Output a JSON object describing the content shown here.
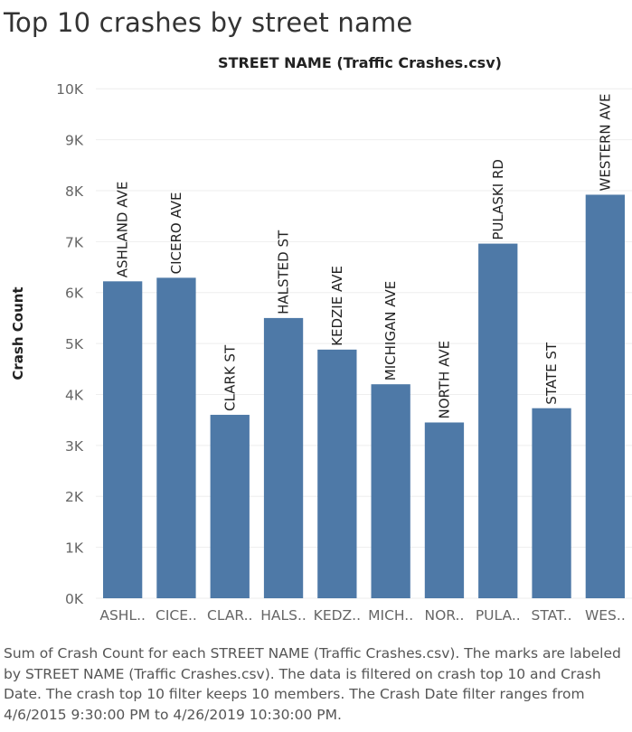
{
  "page": {
    "title": "Top 10 crashes by street name",
    "caption": "Sum of Crash Count for each STREET NAME (Traffic Crashes.csv).  The marks are labeled by STREET NAME (Traffic Crashes.csv). The data is filtered on crash top 10 and Crash Date. The crash top 10 filter keeps 10 members. The Crash Date filter ranges from 4/6/2015 9:30:00 PM to 4/26/2019 10:30:00 PM."
  },
  "colors": {
    "bar": "#4e79a7",
    "grid": "#eeeeee",
    "axis_text": "#666666"
  },
  "chart_data": {
    "type": "bar",
    "title": "STREET NAME (Traffic Crashes.csv)",
    "ylabel": "Crash Count",
    "xlabel": "",
    "ylim": [
      0,
      10500
    ],
    "yticks": [
      0,
      1000,
      2000,
      3000,
      4000,
      5000,
      6000,
      7000,
      8000,
      9000,
      10000
    ],
    "ytick_labels": [
      "0K",
      "1K",
      "2K",
      "3K",
      "4K",
      "5K",
      "6K",
      "7K",
      "8K",
      "9K",
      "10K"
    ],
    "categories": [
      "ASHL..",
      "CICE..",
      "CLAR..",
      "HALS..",
      "KEDZ..",
      "MICH..",
      "NOR..",
      "PULA..",
      "STAT..",
      "WES.."
    ],
    "labels": [
      "ASHLAND AVE",
      "CICERO AVE",
      "CLARK ST",
      "HALSTED ST",
      "KEDZIE AVE",
      "MICHIGAN AVE",
      "NORTH AVE",
      "PULASKI RD",
      "STATE ST",
      "WESTERN AVE"
    ],
    "values": [
      6220,
      6290,
      3600,
      5500,
      4880,
      4200,
      3450,
      6960,
      3730,
      7920
    ],
    "grid": true
  }
}
